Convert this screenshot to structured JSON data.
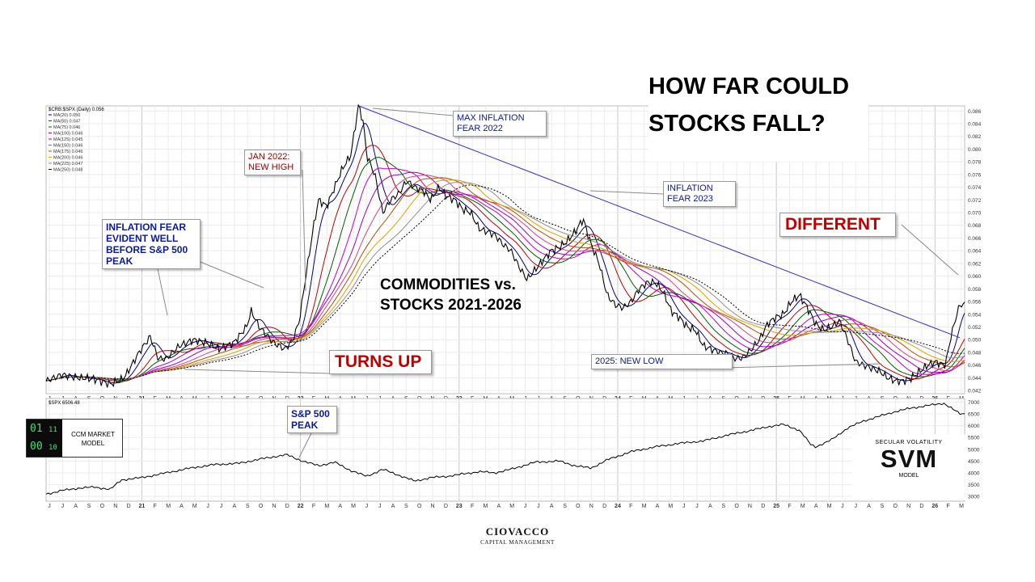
{
  "headline": {
    "line1": "HOW FAR COULD",
    "line2": "STOCKS FALL?"
  },
  "annotations": {
    "max_inflation": "MAX INFLATION\nFEAR 2022",
    "jan_2022": "JAN 2022:\nNEW HIGH",
    "inflation_fear_early": "INFLATION FEAR\nEVIDENT WELL\nBEFORE S&P 500\nPEAK",
    "inflation_2023": "INFLATION\nFEAR 2023",
    "different": "DIFFERENT",
    "turns_up": "TURNS UP",
    "new_low_2025": "2025: NEW LOW",
    "sp500_peak": "S&P 500\nPEAK",
    "commodities_vs": "COMMODITIES vs.\nSTOCKS 2021-2026"
  },
  "ccm": {
    "label": "CCM MARKET\nMODEL",
    "bits": [
      "01",
      "11",
      "00",
      "10"
    ]
  },
  "svm": {
    "top": "SECULAR VOLATILITY",
    "big": "SVM",
    "bottom": "MODEL"
  },
  "footer": {
    "line1": "CIOVACCO",
    "line2": "CAPITAL MANAGEMENT"
  },
  "colors": {
    "price": "#000000",
    "trend": "#2b2bd8",
    "red_text": "#c00000",
    "blue_text": "#0a1aa0"
  },
  "chart_data": [
    {
      "type": "line",
      "title": "",
      "top_label": "$CRB:$SPX (Daily) 0.056",
      "legend": [
        {
          "name": "MA(20) 0.050",
          "color": "#000080"
        },
        {
          "name": "MA(50) 0.047",
          "color": "#c00000"
        },
        {
          "name": "MA(75) 0.046",
          "color": "#006000"
        },
        {
          "name": "MA(100) 0.046",
          "color": "#c000c0"
        },
        {
          "name": "MA(125) 0.045",
          "color": "#9400d3"
        },
        {
          "name": "MA(150) 0.046",
          "color": "#e04080"
        },
        {
          "name": "MA(175) 0.046",
          "color": "#b05000"
        },
        {
          "name": "MA(200) 0.046",
          "color": "#e0a000"
        },
        {
          "name": "MA(225) 0.047",
          "color": "#909090"
        },
        {
          "name": "MA(250) 0.048",
          "color": "#000000"
        }
      ],
      "legend_placement": "top-left",
      "y_ticks": [
        "0.086",
        "0.084",
        "0.082",
        "0.080",
        "0.078",
        "0.076",
        "0.074",
        "0.072",
        "0.070",
        "0.068",
        "0.066",
        "0.064",
        "0.062",
        "0.060",
        "0.058",
        "0.056",
        "0.054",
        "0.052",
        "0.050",
        "0.048",
        "0.046",
        "0.044",
        "0.042"
      ],
      "ylim": [
        0.0415,
        0.0868
      ],
      "x_ticks": [
        "J",
        "J",
        "A",
        "S",
        "O",
        "N",
        "D",
        "21",
        "F",
        "M",
        "A",
        "M",
        "J",
        "J",
        "A",
        "S",
        "O",
        "N",
        "D",
        "22",
        "F",
        "M",
        "A",
        "M",
        "J",
        "J",
        "A",
        "S",
        "O",
        "N",
        "D",
        "23",
        "F",
        "M",
        "A",
        "M",
        "J",
        "J",
        "A",
        "S",
        "O",
        "N",
        "D",
        "24",
        "F",
        "M",
        "A",
        "M",
        "J",
        "J",
        "A",
        "S",
        "O",
        "N",
        "D",
        "25",
        "F",
        "M",
        "A",
        "M",
        "J",
        "J",
        "A",
        "S",
        "O",
        "N",
        "D",
        "26",
        "F",
        "M"
      ],
      "year_labels": [
        "21",
        "22",
        "23",
        "24",
        "25",
        "26"
      ],
      "xlim": [
        2020.5,
        2026.23
      ],
      "series": [
        {
          "name": "$CRB:$SPX",
          "x": [
            2020.5,
            2020.6,
            2020.7,
            2020.8,
            2020.9,
            2020.97,
            2021.0,
            2021.08,
            2021.15,
            2021.2,
            2021.25,
            2021.33,
            2021.42,
            2021.5,
            2021.58,
            2021.67,
            2021.75,
            2021.78,
            2021.83,
            2021.92,
            2021.99,
            2022.04,
            2022.08,
            2022.12,
            2022.17,
            2022.2,
            2022.25,
            2022.3,
            2022.35,
            2022.4,
            2022.45,
            2022.48,
            2022.5,
            2022.55,
            2022.6,
            2022.65,
            2022.7,
            2022.75,
            2022.8,
            2022.85,
            2022.9,
            2022.95,
            2023.0,
            2023.05,
            2023.1,
            2023.15,
            2023.2,
            2023.25,
            2023.3,
            2023.35,
            2023.4,
            2023.45,
            2023.5,
            2023.55,
            2023.6,
            2023.65,
            2023.7,
            2023.75,
            2023.8,
            2023.85,
            2023.9,
            2023.95,
            2024.0,
            2024.05,
            2024.1,
            2024.15,
            2024.2,
            2024.25,
            2024.3,
            2024.35,
            2024.4,
            2024.45,
            2024.5,
            2024.55,
            2024.6,
            2024.65,
            2024.7,
            2024.75,
            2024.8,
            2024.85,
            2024.9,
            2024.95,
            2025.0,
            2025.05,
            2025.1,
            2025.15,
            2025.2,
            2025.25,
            2025.3,
            2025.35,
            2025.4,
            2025.45,
            2025.5,
            2025.55,
            2025.6,
            2025.65,
            2025.7,
            2025.75,
            2025.8,
            2025.85,
            2025.9,
            2025.95,
            2026.0,
            2026.05,
            2026.08,
            2026.11,
            2026.14,
            2026.17,
            2026.2
          ],
          "y": [
            0.0435,
            0.0445,
            0.044,
            0.0438,
            0.043,
            0.0437,
            0.0445,
            0.048,
            0.0505,
            0.047,
            0.047,
            0.049,
            0.05,
            0.0495,
            0.0485,
            0.0495,
            0.052,
            0.0545,
            0.052,
            0.0495,
            0.0485,
            0.05,
            0.053,
            0.06,
            0.068,
            0.072,
            0.071,
            0.074,
            0.077,
            0.079,
            0.087,
            0.084,
            0.079,
            0.076,
            0.07,
            0.072,
            0.073,
            0.075,
            0.074,
            0.0735,
            0.072,
            0.074,
            0.0725,
            0.072,
            0.0705,
            0.07,
            0.0675,
            0.067,
            0.0665,
            0.065,
            0.064,
            0.0615,
            0.0595,
            0.061,
            0.0625,
            0.064,
            0.0645,
            0.0655,
            0.067,
            0.069,
            0.065,
            0.062,
            0.057,
            0.0555,
            0.055,
            0.056,
            0.058,
            0.059,
            0.059,
            0.0575,
            0.0545,
            0.0535,
            0.052,
            0.0515,
            0.049,
            0.0485,
            0.048,
            0.0478,
            0.047,
            0.0472,
            0.0485,
            0.05,
            0.0525,
            0.0535,
            0.054,
            0.056,
            0.057,
            0.055,
            0.0525,
            0.0515,
            0.052,
            0.053,
            0.05,
            0.0465,
            0.046,
            0.0455,
            0.045,
            0.044,
            0.0435,
            0.0435,
            0.044,
            0.045,
            0.046,
            0.0465,
            0.0462,
            0.046,
            0.05,
            0.053,
            0.0555
          ]
        }
      ],
      "trendline": {
        "x": [
          2022.45,
          2026.2
        ],
        "y": [
          0.0868,
          0.0503
        ]
      }
    },
    {
      "type": "line",
      "top_label": "$SPX 6506.48",
      "y_ticks": [
        "7000",
        "6500",
        "6000",
        "5500",
        "5000",
        "4500",
        "4000",
        "3500",
        "3000"
      ],
      "ylim": [
        2800,
        7150
      ],
      "x_ticks": [
        "J",
        "J",
        "A",
        "S",
        "O",
        "N",
        "D",
        "21",
        "F",
        "M",
        "A",
        "M",
        "J",
        "J",
        "A",
        "S",
        "O",
        "N",
        "D",
        "22",
        "F",
        "M",
        "A",
        "M",
        "J",
        "J",
        "A",
        "S",
        "O",
        "N",
        "D",
        "23",
        "F",
        "M",
        "A",
        "M",
        "J",
        "J",
        "A",
        "S",
        "O",
        "N",
        "D",
        "24",
        "F",
        "M",
        "A",
        "M",
        "J",
        "J",
        "A",
        "S",
        "O",
        "N",
        "D",
        "25",
        "F",
        "M",
        "A",
        "M",
        "J",
        "J",
        "A",
        "S",
        "O",
        "N",
        "D",
        "26",
        "F",
        "M"
      ],
      "series": [
        {
          "name": "$SPX",
          "x": [
            2020.5,
            2020.6,
            2020.7,
            2020.8,
            2020.9,
            2020.97,
            2021.1,
            2021.25,
            2021.4,
            2021.55,
            2021.7,
            2021.85,
            2022.0,
            2022.1,
            2022.2,
            2022.3,
            2022.4,
            2022.5,
            2022.6,
            2022.7,
            2022.8,
            2022.9,
            2023.0,
            2023.1,
            2023.2,
            2023.3,
            2023.4,
            2023.55,
            2023.7,
            2023.8,
            2023.9,
            2024.0,
            2024.15,
            2024.3,
            2024.45,
            2024.6,
            2024.75,
            2024.9,
            2025.0,
            2025.1,
            2025.2,
            2025.27,
            2025.3,
            2025.4,
            2025.5,
            2025.6,
            2025.7,
            2025.8,
            2025.9,
            2026.0,
            2026.1,
            2026.2
          ],
          "y": [
            3100,
            3250,
            3350,
            3400,
            3300,
            3700,
            3800,
            4000,
            4200,
            4350,
            4400,
            4600,
            4770,
            4500,
            4300,
            4450,
            4100,
            3850,
            4150,
            3900,
            3650,
            3800,
            3850,
            3950,
            4050,
            4000,
            4150,
            4450,
            4500,
            4300,
            4200,
            4550,
            4900,
            5100,
            5250,
            5350,
            5600,
            5800,
            5950,
            6050,
            5800,
            5200,
            5100,
            5400,
            5900,
            6200,
            6400,
            6600,
            6750,
            6850,
            6950,
            6500
          ]
        }
      ]
    }
  ]
}
